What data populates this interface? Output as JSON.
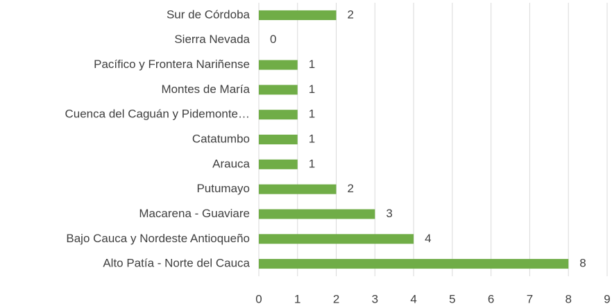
{
  "chart_data": {
    "type": "bar",
    "orientation": "horizontal",
    "categories": [
      "Sur de Córdoba",
      "Sierra Nevada",
      "Pacífico y Frontera Nariñense",
      "Montes de María",
      "Cuenca del Caguán y Pidemonte…",
      "Catatumbo",
      "Arauca",
      "Putumayo",
      "Macarena - Guaviare",
      "Bajo Cauca y Nordeste Antioqueño",
      "Alto Patía - Norte del Cauca"
    ],
    "values": [
      2,
      0,
      1,
      1,
      1,
      1,
      1,
      2,
      3,
      4,
      8
    ],
    "color": "#70ad47",
    "xlim": [
      0,
      9
    ],
    "xticks": [
      0,
      1,
      2,
      3,
      4,
      5,
      6,
      7,
      8,
      9
    ],
    "grid": true
  }
}
